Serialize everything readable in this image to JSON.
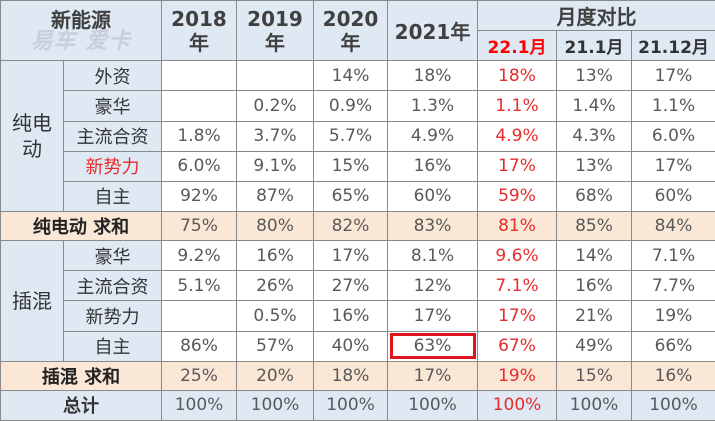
{
  "header": {
    "title": "新能源",
    "subtitle_watermark": "易车 爱卡",
    "years": [
      {
        "line1": "2018",
        "line2": "年"
      },
      {
        "line1": "2019",
        "line2": "年"
      },
      {
        "line1": "2020",
        "line2": "年"
      }
    ],
    "year_2021": "2021年",
    "monthly_compare": "月度对比",
    "months": [
      "22.1月",
      "21.1月",
      "21.12月"
    ]
  },
  "groups": {
    "bev": {
      "label_line1": "纯电",
      "label_line2": "动"
    },
    "phev": {
      "label": "插混"
    }
  },
  "bev_rows": [
    {
      "label": "外资",
      "v2018": "",
      "v2019": "",
      "v2020": "14%",
      "v2021": "18%",
      "m2201": "18%",
      "m2101": "13%",
      "m2112": "17%"
    },
    {
      "label": "豪华",
      "v2018": "",
      "v2019": "0.2%",
      "v2020": "0.9%",
      "v2021": "1.3%",
      "m2201": "1.1%",
      "m2101": "1.4%",
      "m2112": "1.1%"
    },
    {
      "label": "主流合资",
      "v2018": "1.8%",
      "v2019": "3.7%",
      "v2020": "5.7%",
      "v2021": "4.9%",
      "m2201": "4.9%",
      "m2101": "4.3%",
      "m2112": "6.0%"
    },
    {
      "label": "新势力",
      "v2018": "6.0%",
      "v2019": "9.1%",
      "v2020": "15%",
      "v2021": "16%",
      "m2201": "17%",
      "m2101": "13%",
      "m2112": "17%"
    },
    {
      "label": "自主",
      "v2018": "92%",
      "v2019": "87%",
      "v2020": "65%",
      "v2021": "60%",
      "m2201": "59%",
      "m2101": "68%",
      "m2112": "60%"
    }
  ],
  "bev_sum": {
    "label": "纯电动 求和",
    "v2018": "75%",
    "v2019": "80%",
    "v2020": "82%",
    "v2021": "83%",
    "m2201": "81%",
    "m2101": "85%",
    "m2112": "84%"
  },
  "phev_rows": [
    {
      "label": "豪华",
      "v2018": "9.2%",
      "v2019": "16%",
      "v2020": "17%",
      "v2021": "8.1%",
      "m2201": "9.6%",
      "m2101": "14%",
      "m2112": "7.1%"
    },
    {
      "label": "主流合资",
      "v2018": "5.1%",
      "v2019": "26%",
      "v2020": "27%",
      "v2021": "12%",
      "m2201": "7.1%",
      "m2101": "16%",
      "m2112": "7.7%"
    },
    {
      "label": "新势力",
      "v2018": "",
      "v2019": "0.5%",
      "v2020": "16%",
      "v2021": "17%",
      "m2201": "17%",
      "m2101": "21%",
      "m2112": "19%"
    },
    {
      "label": "自主",
      "v2018": "86%",
      "v2019": "57%",
      "v2020": "40%",
      "v2021": "63%",
      "m2201": "67%",
      "m2101": "49%",
      "m2112": "66%"
    }
  ],
  "phev_sum": {
    "label": "插混 求和",
    "v2018": "25%",
    "v2019": "20%",
    "v2020": "18%",
    "v2021": "17%",
    "m2201": "19%",
    "m2101": "15%",
    "m2112": "16%"
  },
  "total": {
    "label": "总计",
    "v2018": "100%",
    "v2019": "100%",
    "v2020": "100%",
    "v2021": "100%",
    "m2201": "100%",
    "m2101": "100%",
    "m2112": "100%"
  },
  "colors": {
    "highlight_red": "#e52b2b",
    "header_blue": "#dfe9f4",
    "sum_peach": "#fbe7d6",
    "highlight_box": "#e0141e"
  }
}
